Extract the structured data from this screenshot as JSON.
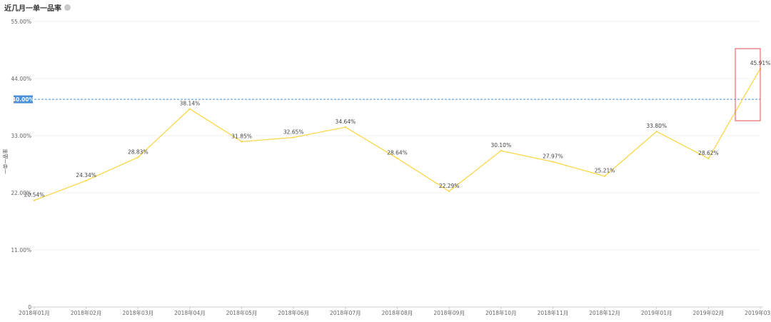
{
  "chart_data": {
    "type": "line",
    "title": "近几月一单一品率",
    "xlabel": "",
    "ylabel": "一单一品率",
    "ylim": [
      0,
      55
    ],
    "yticks": [
      0,
      11,
      22,
      33,
      44,
      55
    ],
    "ytick_labels": [
      "0",
      "11.00%",
      "22.00%",
      "33.00%",
      "44.00%",
      "55.00%"
    ],
    "categories": [
      "2018年01月",
      "2018年02月",
      "2018年03月",
      "2018年04月",
      "2018年05月",
      "2018年06月",
      "2018年07月",
      "2018年08月",
      "2018年09月",
      "2018年10月",
      "2018年11月",
      "2018年12月",
      "2019年01月",
      "2019年02月",
      "2019年03月"
    ],
    "series": [
      {
        "values": [
          20.54,
          24.34,
          28.83,
          38.14,
          31.85,
          32.65,
          34.64,
          28.64,
          22.29,
          30.1,
          27.97,
          25.21,
          33.8,
          28.62,
          45.91
        ],
        "labels": [
          "20.54%",
          "24.34%",
          "28.83%",
          "38.14%",
          "31.85%",
          "32.65%",
          "34.64%",
          "28.64%",
          "22.29%",
          "30.10%",
          "27.97%",
          "25.21%",
          "33.80%",
          "28.62%",
          "45.91%"
        ],
        "color": "#f9d74a"
      }
    ],
    "reference_line": {
      "value": 40,
      "label": "40.00%",
      "color": "#4a90d9"
    },
    "highlight": {
      "category": "2019年03月",
      "color": "#e05050"
    },
    "grid": true,
    "gridColor": "#f0f0f0",
    "axisColor": "#cccccc"
  }
}
